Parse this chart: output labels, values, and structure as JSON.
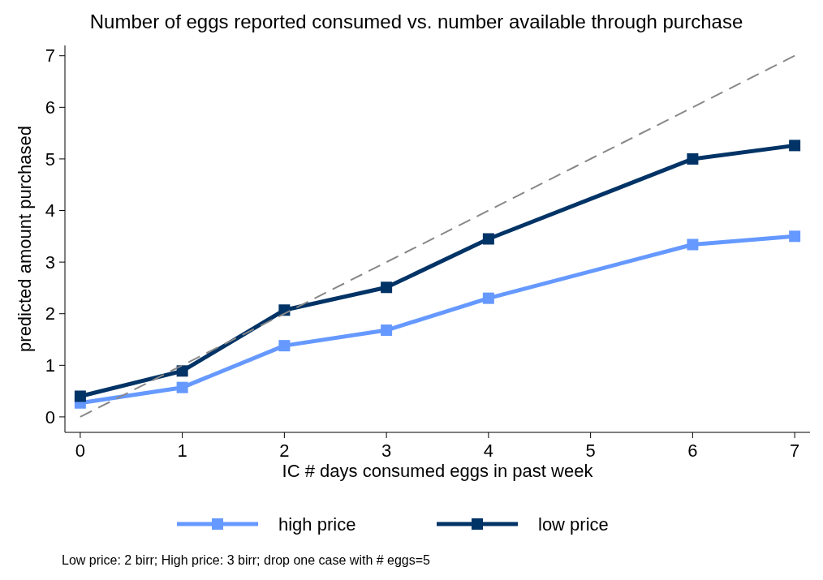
{
  "chart_data": {
    "type": "line",
    "title": "Number of eggs reported consumed vs. number available through purchase",
    "xlabel": "IC # days consumed eggs in past week",
    "ylabel": "predicted amount purchased",
    "xlim": [
      -0.15,
      7.15
    ],
    "xticks": [
      0,
      1,
      2,
      3,
      4,
      5,
      6,
      7
    ],
    "ylim": [
      -0.3,
      7.2
    ],
    "yticks": [
      0,
      1,
      2,
      3,
      4,
      5,
      6,
      7
    ],
    "grid": false,
    "legend": "bottom",
    "marker": "square",
    "line_style": "solid",
    "series": [
      {
        "name": "high price",
        "color": "#6699ff",
        "x": [
          0,
          1,
          2,
          3,
          4,
          6,
          7
        ],
        "values": [
          0.27,
          0.57,
          1.38,
          1.68,
          2.3,
          3.34,
          3.5
        ]
      },
      {
        "name": "low price",
        "color": "#003366",
        "x": [
          0,
          1,
          2,
          3,
          4,
          6,
          7
        ],
        "values": [
          0.4,
          0.89,
          2.07,
          2.51,
          3.45,
          5.0,
          5.26
        ]
      },
      {
        "color": "#888888",
        "x": [
          0,
          7
        ],
        "values": [
          0,
          7
        ],
        "marker": "none",
        "line_style": "dashed"
      }
    ],
    "annotations": [
      "Low price: 2 birr; High price: 3 birr; drop one case with # eggs=5"
    ]
  }
}
